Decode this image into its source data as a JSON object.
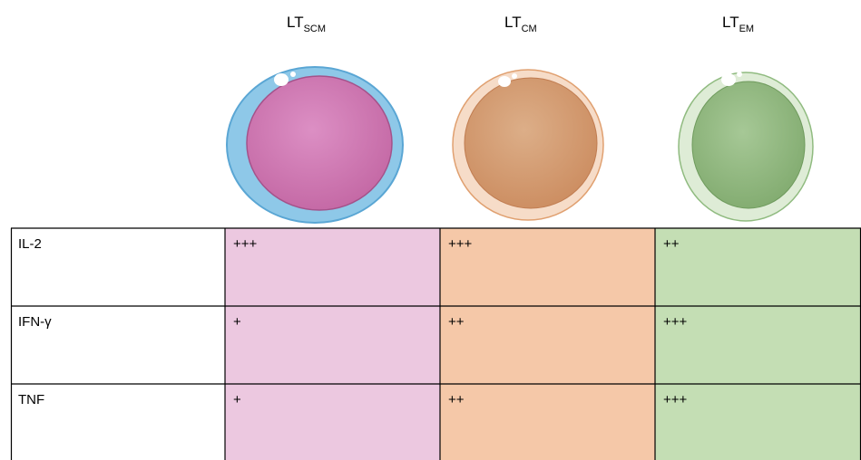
{
  "columns": [
    {
      "label": "LT",
      "sub": "SCM"
    },
    {
      "label": "LT",
      "sub": "CM"
    },
    {
      "label": "LT",
      "sub": "EM"
    }
  ],
  "table": {
    "rows": [
      [
        "IL-2",
        "+++",
        "+++",
        "++"
      ],
      [
        "IFN-γ",
        "+",
        "++",
        "+++"
      ],
      [
        "TNF",
        "+",
        "++",
        "+++"
      ]
    ]
  }
}
